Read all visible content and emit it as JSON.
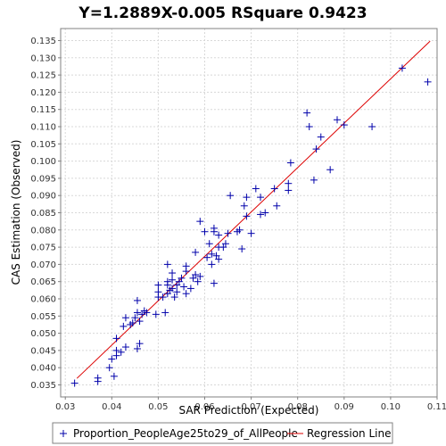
{
  "chart_data": {
    "type": "scatter",
    "title": "Y=1.2889X-0.005    RSquare 0.9423",
    "xlabel": "SAR Prediction (Expected)",
    "ylabel": "CAS Estimation (Observed)",
    "xlim": [
      0.029,
      0.11
    ],
    "ylim": [
      0.0315,
      0.1385
    ],
    "x_ticks": [
      "0.03",
      "0.04",
      "0.05",
      "0.06",
      "0.07",
      "0.08",
      "0.09",
      "0.10",
      "0.11"
    ],
    "y_ticks": [
      "0.035",
      "0.040",
      "0.045",
      "0.050",
      "0.055",
      "0.060",
      "0.065",
      "0.070",
      "0.075",
      "0.080",
      "0.085",
      "0.090",
      "0.095",
      "0.100",
      "0.105",
      "0.110",
      "0.115",
      "0.120",
      "0.125",
      "0.130",
      "0.135"
    ],
    "grid": true,
    "legend_position": "bottom",
    "regression": {
      "slope": 1.2889,
      "intercept": -0.005,
      "x_range": [
        0.0325,
        0.1085
      ],
      "color": "#dd0000"
    },
    "series": [
      {
        "name": "Proportion_PeopleAge25to29_of_AllPeople",
        "marker": "plus",
        "color": "#0000aa",
        "points": [
          [
            0.032,
            0.0355
          ],
          [
            0.037,
            0.036
          ],
          [
            0.037,
            0.037
          ],
          [
            0.0395,
            0.04
          ],
          [
            0.04,
            0.0425
          ],
          [
            0.0405,
            0.0375
          ],
          [
            0.041,
            0.0435
          ],
          [
            0.041,
            0.045
          ],
          [
            0.041,
            0.0485
          ],
          [
            0.042,
            0.0445
          ],
          [
            0.0425,
            0.052
          ],
          [
            0.043,
            0.0545
          ],
          [
            0.043,
            0.046
          ],
          [
            0.044,
            0.0525
          ],
          [
            0.0445,
            0.053
          ],
          [
            0.045,
            0.0545
          ],
          [
            0.0455,
            0.0455
          ],
          [
            0.0455,
            0.056
          ],
          [
            0.0455,
            0.0595
          ],
          [
            0.046,
            0.047
          ],
          [
            0.046,
            0.0535
          ],
          [
            0.0465,
            0.0555
          ],
          [
            0.047,
            0.0565
          ],
          [
            0.0475,
            0.056
          ],
          [
            0.0495,
            0.0555
          ],
          [
            0.05,
            0.0605
          ],
          [
            0.05,
            0.062
          ],
          [
            0.05,
            0.064
          ],
          [
            0.051,
            0.0605
          ],
          [
            0.0515,
            0.056
          ],
          [
            0.052,
            0.0615
          ],
          [
            0.052,
            0.064
          ],
          [
            0.052,
            0.065
          ],
          [
            0.052,
            0.07
          ],
          [
            0.0525,
            0.0625
          ],
          [
            0.053,
            0.063
          ],
          [
            0.053,
            0.0655
          ],
          [
            0.053,
            0.0675
          ],
          [
            0.0535,
            0.0605
          ],
          [
            0.054,
            0.062
          ],
          [
            0.054,
            0.064
          ],
          [
            0.0545,
            0.065
          ],
          [
            0.055,
            0.066
          ],
          [
            0.0555,
            0.0635
          ],
          [
            0.056,
            0.0615
          ],
          [
            0.056,
            0.068
          ],
          [
            0.056,
            0.0695
          ],
          [
            0.057,
            0.063
          ],
          [
            0.0575,
            0.066
          ],
          [
            0.058,
            0.067
          ],
          [
            0.058,
            0.0735
          ],
          [
            0.0585,
            0.065
          ],
          [
            0.059,
            0.0665
          ],
          [
            0.059,
            0.0825
          ],
          [
            0.06,
            0.0795
          ],
          [
            0.0605,
            0.072
          ],
          [
            0.061,
            0.076
          ],
          [
            0.0615,
            0.07
          ],
          [
            0.0615,
            0.073
          ],
          [
            0.062,
            0.0645
          ],
          [
            0.062,
            0.0795
          ],
          [
            0.062,
            0.0805
          ],
          [
            0.0625,
            0.0725
          ],
          [
            0.063,
            0.0715
          ],
          [
            0.063,
            0.075
          ],
          [
            0.063,
            0.0785
          ],
          [
            0.064,
            0.075
          ],
          [
            0.0645,
            0.076
          ],
          [
            0.065,
            0.079
          ],
          [
            0.0655,
            0.09
          ],
          [
            0.067,
            0.0795
          ],
          [
            0.0675,
            0.08
          ],
          [
            0.068,
            0.0745
          ],
          [
            0.0685,
            0.087
          ],
          [
            0.069,
            0.084
          ],
          [
            0.069,
            0.0895
          ],
          [
            0.07,
            0.079
          ],
          [
            0.071,
            0.092
          ],
          [
            0.072,
            0.0845
          ],
          [
            0.072,
            0.0895
          ],
          [
            0.073,
            0.085
          ],
          [
            0.075,
            0.092
          ],
          [
            0.0755,
            0.087
          ],
          [
            0.078,
            0.0915
          ],
          [
            0.078,
            0.0935
          ],
          [
            0.0785,
            0.0995
          ],
          [
            0.082,
            0.114
          ],
          [
            0.0825,
            0.11
          ],
          [
            0.0835,
            0.0945
          ],
          [
            0.084,
            0.1035
          ],
          [
            0.085,
            0.107
          ],
          [
            0.087,
            0.0975
          ],
          [
            0.0885,
            0.112
          ],
          [
            0.09,
            0.1105
          ],
          [
            0.096,
            0.11
          ],
          [
            0.1025,
            0.127
          ],
          [
            0.108,
            0.123
          ]
        ]
      }
    ]
  },
  "legend": {
    "series_label": "Proportion_PeopleAge25to29_of_AllPeople",
    "line_label": "Regression Line"
  }
}
